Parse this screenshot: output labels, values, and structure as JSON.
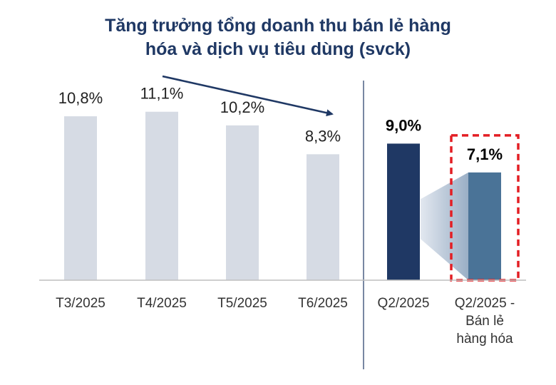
{
  "chart_data": {
    "type": "bar",
    "title_lines": [
      "Tăng trưởng tổng doanh thu bán lẻ hàng",
      "hóa và dịch vụ tiêu dùng (svck)"
    ],
    "categories": [
      [
        "T3/2025"
      ],
      [
        "T4/2025"
      ],
      [
        "T5/2025"
      ],
      [
        "T6/2025"
      ],
      [
        "Q2/2025"
      ],
      [
        "Q2/2025 -",
        "Bán lẻ",
        "hàng hóa"
      ]
    ],
    "values": [
      10.8,
      11.1,
      10.2,
      8.3,
      9.0,
      7.1
    ],
    "value_labels": [
      "10,8%",
      "11,1%",
      "10,2%",
      "8,3%",
      "9,0%",
      "7,1%"
    ],
    "unit": "%",
    "ylim": [
      0,
      14
    ],
    "grid": false,
    "legend": "none",
    "colors": {
      "monthly": "#d6dbe4",
      "quarter_total": "#1f3864",
      "quarter_goods": "#4a7397",
      "title": "#1f3864",
      "highlight_box": "#e31e24",
      "trend_arrow": "#1f3864"
    }
  }
}
